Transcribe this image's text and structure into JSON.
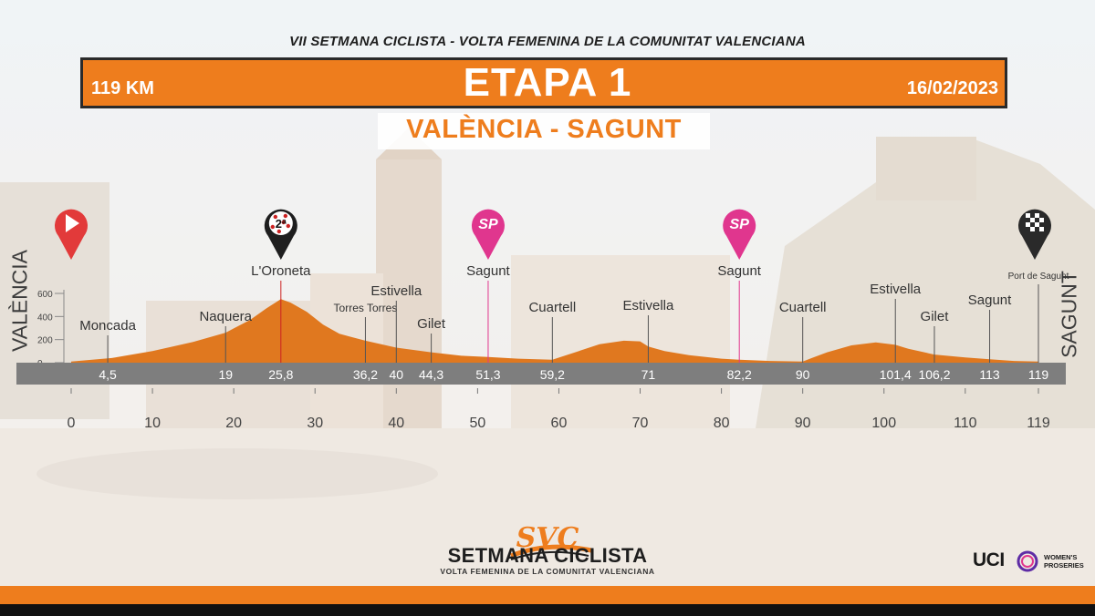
{
  "header": {
    "series_title": "VII SETMANA CICLISTA - VOLTA FEMENINA DE LA COMUNITAT VALENCIANA",
    "distance": "119 KM",
    "stage": "ETAPA 1",
    "date": "16/02/2023",
    "route": "VALÈNCIA - SAGUNT"
  },
  "profile": {
    "start_name": "VALÈNCIA",
    "finish_name": "SAGUNT"
  },
  "logo": {
    "mark": "SVC",
    "name": "SETMANA CICLISTA",
    "subtitle": "VOLTA FEMENINA DE LA COMUNITAT VALENCIANA"
  },
  "uci": {
    "mark": "UCI",
    "series": "WOMEN'S PROSERIES"
  },
  "colors": {
    "accent": "#ee7d1d",
    "header_text": "#ffffff",
    "sprint_marker": "#e0368e",
    "start_marker": "#e23a3a",
    "kom_marker": "#cc2222",
    "band": "#7e7e7e",
    "profile_fill": "#e0781f"
  },
  "chart_data": {
    "type": "area",
    "xlim": [
      0,
      119
    ],
    "ylim": [
      0,
      600
    ],
    "y_ticks": [
      "0",
      "200",
      "400",
      "600"
    ],
    "x_ticks": [
      {
        "value": 0,
        "label": "0"
      },
      {
        "value": 10,
        "label": "10"
      },
      {
        "value": 20,
        "label": "20"
      },
      {
        "value": 30,
        "label": "30"
      },
      {
        "value": 40,
        "label": "40"
      },
      {
        "value": 50,
        "label": "50"
      },
      {
        "value": 60,
        "label": "60"
      },
      {
        "value": 70,
        "label": "70"
      },
      {
        "value": 80,
        "label": "80"
      },
      {
        "value": 90,
        "label": "90"
      },
      {
        "value": 100,
        "label": "100"
      },
      {
        "value": 110,
        "label": "110"
      },
      {
        "value": 119,
        "label": "119"
      }
    ],
    "elevation": {
      "km": [
        0,
        5,
        10,
        15,
        19,
        22,
        24,
        25.8,
        27,
        29,
        31,
        33,
        36.2,
        40,
        44.3,
        48,
        51.3,
        55,
        59.2,
        62,
        65,
        68,
        70,
        71,
        73,
        76,
        80,
        82.2,
        86,
        90,
        93,
        96,
        99,
        101.4,
        103,
        106.2,
        110,
        113,
        116,
        119
      ],
      "m": [
        10,
        40,
        100,
        180,
        260,
        370,
        470,
        550,
        520,
        440,
        330,
        250,
        190,
        130,
        90,
        60,
        50,
        35,
        25,
        90,
        160,
        190,
        185,
        140,
        100,
        65,
        35,
        25,
        15,
        10,
        90,
        150,
        175,
        155,
        120,
        70,
        45,
        30,
        15,
        10
      ]
    },
    "waypoints": [
      {
        "km": 4.5,
        "km_label": "4,5",
        "name": "Moncada"
      },
      {
        "km": 19,
        "km_label": "19",
        "name": "Naquera"
      },
      {
        "km": 25.8,
        "km_label": "25,8",
        "name": "L'Oroneta"
      },
      {
        "km": 36.2,
        "km_label": "36,2",
        "name": "Torres Torres"
      },
      {
        "km": 40,
        "km_label": "40",
        "name": "Estivella"
      },
      {
        "km": 44.3,
        "km_label": "44,3",
        "name": "Gilet"
      },
      {
        "km": 51.3,
        "km_label": "51,3",
        "name": "Sagunt"
      },
      {
        "km": 59.2,
        "km_label": "59,2",
        "name": "Cuartell"
      },
      {
        "km": 71,
        "km_label": "71",
        "name": "Estivella"
      },
      {
        "km": 82.2,
        "km_label": "82,2",
        "name": "Sagunt"
      },
      {
        "km": 90,
        "km_label": "90",
        "name": "Cuartell"
      },
      {
        "km": 101.4,
        "km_label": "101,4",
        "name": "Estivella"
      },
      {
        "km": 106.2,
        "km_label": "106,2",
        "name": "Gilet"
      },
      {
        "km": 113,
        "km_label": "113",
        "name": "Sagunt"
      },
      {
        "km": 119,
        "km_label": "119",
        "name": "Port de Sagunt"
      }
    ],
    "markers": [
      {
        "km": 0,
        "kind": "start",
        "label": "",
        "name": ""
      },
      {
        "km": 25.8,
        "kind": "kom",
        "label": "2ª",
        "name": "L'Oroneta"
      },
      {
        "km": 51.3,
        "kind": "sprint",
        "label": "SP",
        "name": "Sagunt"
      },
      {
        "km": 82.2,
        "kind": "sprint",
        "label": "SP",
        "name": "Sagunt"
      },
      {
        "km": 119,
        "kind": "finish",
        "label": "",
        "name": ""
      }
    ]
  }
}
